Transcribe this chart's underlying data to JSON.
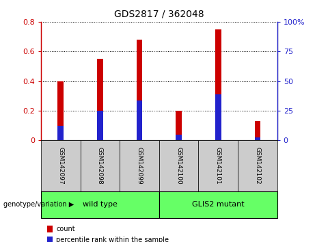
{
  "title": "GDS2817 / 362048",
  "categories": [
    "GSM142097",
    "GSM142098",
    "GSM142099",
    "GSM142100",
    "GSM142101",
    "GSM142102"
  ],
  "count_values": [
    0.4,
    0.55,
    0.68,
    0.2,
    0.75,
    0.13
  ],
  "percentile_values": [
    0.1,
    0.2,
    0.27,
    0.04,
    0.31,
    0.02
  ],
  "left_ylim": [
    0,
    0.8
  ],
  "right_ylim": [
    0,
    100
  ],
  "left_yticks": [
    0,
    0.2,
    0.4,
    0.6,
    0.8
  ],
  "right_yticks": [
    0,
    25,
    50,
    75,
    100
  ],
  "left_yticklabels": [
    "0",
    "0.2",
    "0.4",
    "0.6",
    "0.8"
  ],
  "right_yticklabels": [
    "0",
    "25",
    "50",
    "75",
    "100%"
  ],
  "bar_color": "#cc0000",
  "percentile_color": "#2222cc",
  "left_axis_color": "#cc0000",
  "right_axis_color": "#2222cc",
  "group1_label": "wild type",
  "group2_label": "GLIS2 mutant",
  "group1_indices": [
    0,
    1,
    2
  ],
  "group2_indices": [
    3,
    4,
    5
  ],
  "group_color": "#66ff66",
  "group_label_prefix": "genotype/variation",
  "legend_count_label": "count",
  "legend_percentile_label": "percentile rank within the sample",
  "bar_width": 0.15,
  "bg_color_ticks": "#cccccc",
  "tick_box_border": "#888888",
  "figure_bg": "#ffffff"
}
